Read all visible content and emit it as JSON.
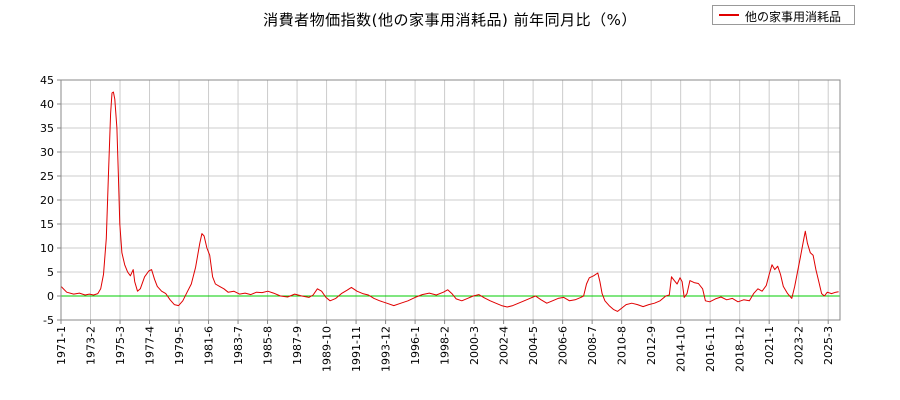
{
  "chart_data": {
    "type": "line",
    "title": "消費者物価指数(他の家事用消耗品) 前年同月比（%）",
    "series": [
      {
        "name": "他の家事用消耗品",
        "color": "#e00000",
        "points": [
          [
            1971.0,
            2.0
          ],
          [
            1971.4,
            0.8
          ],
          [
            1971.9,
            0.4
          ],
          [
            1972.3,
            0.6
          ],
          [
            1972.7,
            0.2
          ],
          [
            1973.0,
            0.4
          ],
          [
            1973.3,
            0.2
          ],
          [
            1973.6,
            0.5
          ],
          [
            1973.8,
            1.5
          ],
          [
            1974.0,
            4.5
          ],
          [
            1974.2,
            12.0
          ],
          [
            1974.35,
            25.0
          ],
          [
            1974.5,
            38.0
          ],
          [
            1974.6,
            42.3
          ],
          [
            1974.7,
            42.5
          ],
          [
            1974.8,
            41.0
          ],
          [
            1974.95,
            35.0
          ],
          [
            1975.05,
            25.0
          ],
          [
            1975.15,
            15.0
          ],
          [
            1975.3,
            9.0
          ],
          [
            1975.5,
            6.5
          ],
          [
            1975.7,
            5.0
          ],
          [
            1975.9,
            4.2
          ],
          [
            1976.1,
            5.5
          ],
          [
            1976.2,
            3.0
          ],
          [
            1976.4,
            1.0
          ],
          [
            1976.6,
            1.5
          ],
          [
            1976.9,
            4.0
          ],
          [
            1977.2,
            5.2
          ],
          [
            1977.4,
            5.5
          ],
          [
            1977.6,
            3.5
          ],
          [
            1977.8,
            2.0
          ],
          [
            1978.1,
            1.0
          ],
          [
            1978.4,
            0.5
          ],
          [
            1978.7,
            -0.8
          ],
          [
            1979.0,
            -1.8
          ],
          [
            1979.3,
            -2.0
          ],
          [
            1979.6,
            -1.0
          ],
          [
            1979.9,
            0.8
          ],
          [
            1980.2,
            2.5
          ],
          [
            1980.5,
            6.0
          ],
          [
            1980.8,
            11.0
          ],
          [
            1980.95,
            13.0
          ],
          [
            1981.1,
            12.5
          ],
          [
            1981.3,
            10.0
          ],
          [
            1981.5,
            8.5
          ],
          [
            1981.7,
            4.0
          ],
          [
            1981.9,
            2.5
          ],
          [
            1982.2,
            2.0
          ],
          [
            1982.5,
            1.5
          ],
          [
            1982.8,
            0.8
          ],
          [
            1983.2,
            1.0
          ],
          [
            1983.6,
            0.4
          ],
          [
            1984.0,
            0.6
          ],
          [
            1984.4,
            0.3
          ],
          [
            1984.8,
            0.8
          ],
          [
            1985.2,
            0.7
          ],
          [
            1985.6,
            1.0
          ],
          [
            1986.0,
            0.6
          ],
          [
            1986.5,
            0.0
          ],
          [
            1987.0,
            -0.2
          ],
          [
            1987.5,
            0.4
          ],
          [
            1988.0,
            0.0
          ],
          [
            1988.5,
            -0.3
          ],
          [
            1988.8,
            0.2
          ],
          [
            1989.1,
            1.5
          ],
          [
            1989.4,
            1.0
          ],
          [
            1989.7,
            -0.3
          ],
          [
            1990.0,
            -1.0
          ],
          [
            1990.4,
            -0.5
          ],
          [
            1990.8,
            0.5
          ],
          [
            1991.2,
            1.2
          ],
          [
            1991.5,
            1.8
          ],
          [
            1991.9,
            1.0
          ],
          [
            1992.3,
            0.5
          ],
          [
            1992.7,
            0.2
          ],
          [
            1993.1,
            -0.5
          ],
          [
            1993.5,
            -1.0
          ],
          [
            1994.0,
            -1.5
          ],
          [
            1994.5,
            -2.0
          ],
          [
            1995.0,
            -1.5
          ],
          [
            1995.5,
            -1.0
          ],
          [
            1996.0,
            -0.3
          ],
          [
            1996.5,
            0.3
          ],
          [
            1997.0,
            0.6
          ],
          [
            1997.5,
            0.2
          ],
          [
            1998.0,
            0.8
          ],
          [
            1998.3,
            1.3
          ],
          [
            1998.6,
            0.5
          ],
          [
            1998.9,
            -0.6
          ],
          [
            1999.3,
            -1.0
          ],
          [
            1999.7,
            -0.5
          ],
          [
            2000.1,
            0.0
          ],
          [
            2000.5,
            0.3
          ],
          [
            2000.9,
            -0.4
          ],
          [
            2001.3,
            -1.0
          ],
          [
            2001.7,
            -1.5
          ],
          [
            2002.1,
            -2.0
          ],
          [
            2002.5,
            -2.3
          ],
          [
            2002.9,
            -2.0
          ],
          [
            2003.3,
            -1.5
          ],
          [
            2003.7,
            -1.0
          ],
          [
            2004.1,
            -0.5
          ],
          [
            2004.5,
            0.0
          ],
          [
            2004.9,
            -0.8
          ],
          [
            2005.3,
            -1.5
          ],
          [
            2005.7,
            -1.0
          ],
          [
            2006.1,
            -0.5
          ],
          [
            2006.5,
            -0.3
          ],
          [
            2006.9,
            -1.0
          ],
          [
            2007.3,
            -0.8
          ],
          [
            2007.7,
            -0.3
          ],
          [
            2007.9,
            0.0
          ],
          [
            2008.1,
            2.5
          ],
          [
            2008.3,
            3.8
          ],
          [
            2008.6,
            4.2
          ],
          [
            2008.9,
            4.8
          ],
          [
            2009.05,
            3.0
          ],
          [
            2009.2,
            0.5
          ],
          [
            2009.4,
            -1.0
          ],
          [
            2009.7,
            -2.0
          ],
          [
            2010.0,
            -2.8
          ],
          [
            2010.3,
            -3.2
          ],
          [
            2010.6,
            -2.5
          ],
          [
            2010.9,
            -1.8
          ],
          [
            2011.3,
            -1.5
          ],
          [
            2011.7,
            -1.8
          ],
          [
            2012.1,
            -2.2
          ],
          [
            2012.5,
            -1.8
          ],
          [
            2012.9,
            -1.5
          ],
          [
            2013.3,
            -1.0
          ],
          [
            2013.7,
            0.0
          ],
          [
            2013.95,
            0.2
          ],
          [
            2014.1,
            4.0
          ],
          [
            2014.3,
            3.2
          ],
          [
            2014.5,
            2.5
          ],
          [
            2014.7,
            3.8
          ],
          [
            2014.85,
            3.0
          ],
          [
            2015.0,
            -0.3
          ],
          [
            2015.2,
            0.5
          ],
          [
            2015.4,
            3.2
          ],
          [
            2015.7,
            2.8
          ],
          [
            2016.0,
            2.6
          ],
          [
            2016.3,
            1.5
          ],
          [
            2016.5,
            -1.0
          ],
          [
            2016.8,
            -1.2
          ],
          [
            2017.2,
            -0.6
          ],
          [
            2017.6,
            -0.2
          ],
          [
            2018.0,
            -0.8
          ],
          [
            2018.4,
            -0.5
          ],
          [
            2018.8,
            -1.2
          ],
          [
            2019.2,
            -0.8
          ],
          [
            2019.6,
            -1.0
          ],
          [
            2019.9,
            0.5
          ],
          [
            2020.2,
            1.5
          ],
          [
            2020.5,
            1.0
          ],
          [
            2020.8,
            2.2
          ],
          [
            2021.0,
            4.5
          ],
          [
            2021.2,
            6.5
          ],
          [
            2021.4,
            5.5
          ],
          [
            2021.6,
            6.2
          ],
          [
            2021.8,
            4.5
          ],
          [
            2022.0,
            2.0
          ],
          [
            2022.3,
            0.5
          ],
          [
            2022.6,
            -0.5
          ],
          [
            2022.8,
            2.0
          ],
          [
            2023.0,
            5.0
          ],
          [
            2023.2,
            8.0
          ],
          [
            2023.45,
            12.0
          ],
          [
            2023.55,
            13.5
          ],
          [
            2023.7,
            11.0
          ],
          [
            2023.9,
            9.0
          ],
          [
            2024.1,
            8.5
          ],
          [
            2024.3,
            5.5
          ],
          [
            2024.5,
            3.0
          ],
          [
            2024.7,
            0.5
          ],
          [
            2024.9,
            0.0
          ],
          [
            2025.1,
            0.8
          ],
          [
            2025.4,
            0.5
          ],
          [
            2025.7,
            0.8
          ],
          [
            2025.9,
            0.9
          ]
        ]
      }
    ],
    "ylim": [
      -5,
      45
    ],
    "yticks": [
      -5,
      0,
      5,
      10,
      15,
      20,
      25,
      30,
      35,
      40,
      45
    ],
    "xlim": [
      1971.0,
      2026.0
    ],
    "xticks": [
      {
        "label": "1971-1",
        "x": 1971.0
      },
      {
        "label": "1973-2",
        "x": 1973.083
      },
      {
        "label": "1975-3",
        "x": 1975.167
      },
      {
        "label": "1977-4",
        "x": 1977.25
      },
      {
        "label": "1979-5",
        "x": 1979.333
      },
      {
        "label": "1981-6",
        "x": 1981.417
      },
      {
        "label": "1983-7",
        "x": 1983.5
      },
      {
        "label": "1985-8",
        "x": 1985.583
      },
      {
        "label": "1987-9",
        "x": 1987.667
      },
      {
        "label": "1989-10",
        "x": 1989.75
      },
      {
        "label": "1991-11",
        "x": 1991.833
      },
      {
        "label": "1993-12",
        "x": 1993.917
      },
      {
        "label": "1996-1",
        "x": 1996.0
      },
      {
        "label": "1998-2",
        "x": 1998.083
      },
      {
        "label": "2000-3",
        "x": 2000.167
      },
      {
        "label": "2002-4",
        "x": 2002.25
      },
      {
        "label": "2004-5",
        "x": 2004.333
      },
      {
        "label": "2006-6",
        "x": 2006.417
      },
      {
        "label": "2008-7",
        "x": 2008.5
      },
      {
        "label": "2010-8",
        "x": 2010.583
      },
      {
        "label": "2012-9",
        "x": 2012.667
      },
      {
        "label": "2014-10",
        "x": 2014.75
      },
      {
        "label": "2016-11",
        "x": 2016.833
      },
      {
        "label": "2018-12",
        "x": 2018.917
      },
      {
        "label": "2021-1",
        "x": 2021.0
      },
      {
        "label": "2023-2",
        "x": 2023.083
      },
      {
        "label": "2025-3",
        "x": 2025.167
      }
    ],
    "reference_line": {
      "y": 0,
      "color": "#00cc00"
    },
    "grid": true,
    "legend": {
      "position": "top-right",
      "label": "他の家事用消耗品"
    },
    "grid_color": "#cccccc"
  }
}
